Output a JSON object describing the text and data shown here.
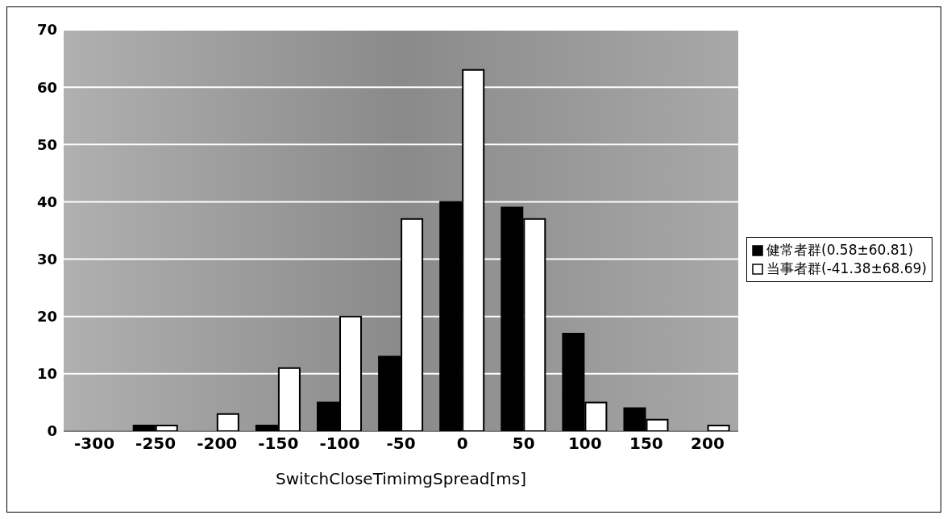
{
  "chart_data": {
    "type": "bar",
    "xlabel": "SwitchCloseTimimgSpread[ms]",
    "categories": [
      "-300",
      "-250",
      "-200",
      "-150",
      "-100",
      "-50",
      "0",
      "50",
      "100",
      "150",
      "200"
    ],
    "series": [
      {
        "name": "健常者群(0.58±60.81)",
        "color": "#000000",
        "values": [
          0,
          1,
          0,
          1,
          5,
          13,
          40,
          39,
          17,
          4,
          0
        ]
      },
      {
        "name": "当事者群(-41.38±68.69)",
        "color": "#ffffff",
        "values": [
          0,
          1,
          3,
          11,
          20,
          37,
          63,
          37,
          5,
          2,
          1
        ]
      }
    ],
    "ylim": [
      0,
      70
    ],
    "yticks": [
      0,
      10,
      20,
      30,
      40,
      50,
      60,
      70
    ],
    "grid": "y",
    "legend": "right"
  }
}
